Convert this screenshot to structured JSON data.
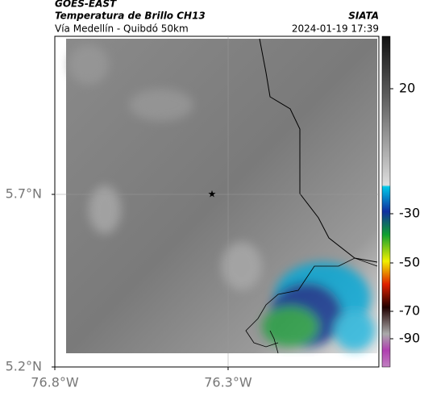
{
  "header": {
    "source": "GOES-EAST",
    "title": "Temperatura de Brillo CH13",
    "subtitle": "Vía Medellín - Quibdó 50km",
    "org": "SIATA",
    "datetime": "2024-01-19 17:39"
  },
  "map": {
    "xlim": [
      -76.8,
      -75.865
    ],
    "ylim": [
      5.2,
      6.158
    ],
    "xticks": [
      {
        "value": -76.8,
        "label": "76.8°W"
      },
      {
        "value": -76.3,
        "label": "76.3°W"
      }
    ],
    "yticks": [
      {
        "value": 5.2,
        "label": "5.2°N"
      },
      {
        "value": 5.7,
        "label": "5.7°N"
      }
    ]
  },
  "colorbar": {
    "ticks": [
      20,
      -30,
      -50,
      -70,
      -90
    ]
  }
}
